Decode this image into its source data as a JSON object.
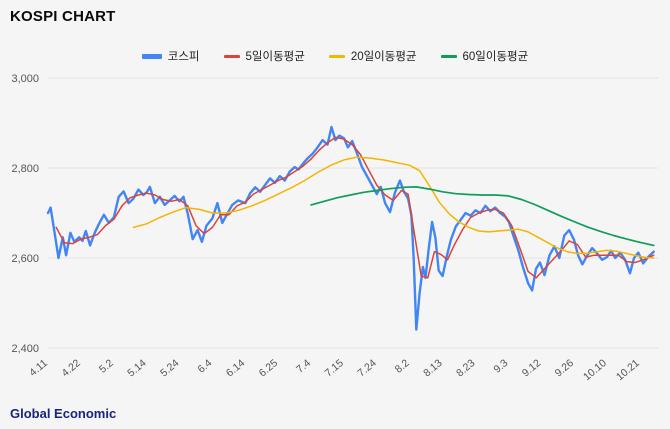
{
  "page": {
    "title": "KOSPI CHART",
    "footer": "Global Economic"
  },
  "legend": {
    "items": [
      {
        "label": "코스피",
        "color": "#4285f4"
      },
      {
        "label": "5일이동평균",
        "color": "#db4437"
      },
      {
        "label": "20일이동평균",
        "color": "#f4b400"
      },
      {
        "label": "60일이동평균",
        "color": "#0f9d58"
      }
    ]
  },
  "chart_data": {
    "type": "line",
    "title": "KOSPI CHART",
    "xlabel": "",
    "ylabel": "",
    "ylim": [
      2400,
      3000
    ],
    "x_domain": [
      0,
      18.55
    ],
    "grid": "horizontal",
    "legend_position": "top",
    "y_ticks": [
      2400,
      2600,
      2800,
      3000
    ],
    "y_tick_labels": [
      "2,400",
      "2,600",
      "2,800",
      "3,000"
    ],
    "x_ticks": [
      "4.11",
      "4.22",
      "5.2",
      "5.14",
      "5.24",
      "6.4",
      "6.14",
      "6.25",
      "7.4",
      "7.15",
      "7.24",
      "8.2",
      "8.13",
      "8.23",
      "9.3",
      "9.12",
      "9.26",
      "10.10",
      "10.21"
    ],
    "x_unit": "tick-index (0 = 4.11 ... 18 = 10.21)",
    "series": [
      {
        "key": "kospi",
        "name": "코스피",
        "color": "#4285f4",
        "width": 2.4,
        "points": [
          [
            0,
            2700
          ],
          [
            0.08,
            2712
          ],
          [
            0.2,
            2656
          ],
          [
            0.32,
            2600
          ],
          [
            0.45,
            2646
          ],
          [
            0.55,
            2606
          ],
          [
            0.68,
            2656
          ],
          [
            0.8,
            2636
          ],
          [
            0.95,
            2646
          ],
          [
            1.05,
            2638
          ],
          [
            1.15,
            2660
          ],
          [
            1.28,
            2628
          ],
          [
            1.42,
            2656
          ],
          [
            1.55,
            2676
          ],
          [
            1.7,
            2696
          ],
          [
            1.85,
            2678
          ],
          [
            2,
            2690
          ],
          [
            2.15,
            2736
          ],
          [
            2.3,
            2748
          ],
          [
            2.45,
            2722
          ],
          [
            2.6,
            2732
          ],
          [
            2.75,
            2752
          ],
          [
            2.9,
            2740
          ],
          [
            3,
            2746
          ],
          [
            3.1,
            2758
          ],
          [
            3.25,
            2722
          ],
          [
            3.4,
            2736
          ],
          [
            3.55,
            2718
          ],
          [
            3.7,
            2728
          ],
          [
            3.85,
            2738
          ],
          [
            4,
            2726
          ],
          [
            4.12,
            2736
          ],
          [
            4.25,
            2698
          ],
          [
            4.4,
            2642
          ],
          [
            4.55,
            2662
          ],
          [
            4.68,
            2636
          ],
          [
            4.82,
            2672
          ],
          [
            5,
            2688
          ],
          [
            5.15,
            2722
          ],
          [
            5.3,
            2678
          ],
          [
            5.45,
            2698
          ],
          [
            5.6,
            2718
          ],
          [
            5.78,
            2728
          ],
          [
            6,
            2722
          ],
          [
            6.15,
            2744
          ],
          [
            6.3,
            2757
          ],
          [
            6.45,
            2747
          ],
          [
            6.6,
            2762
          ],
          [
            6.75,
            2777
          ],
          [
            6.9,
            2767
          ],
          [
            7.05,
            2782
          ],
          [
            7.2,
            2772
          ],
          [
            7.35,
            2792
          ],
          [
            7.5,
            2802
          ],
          [
            7.62,
            2797
          ],
          [
            7.78,
            2812
          ],
          [
            7.9,
            2822
          ],
          [
            8.05,
            2832
          ],
          [
            8.2,
            2846
          ],
          [
            8.35,
            2862
          ],
          [
            8.5,
            2852
          ],
          [
            8.62,
            2891
          ],
          [
            8.74,
            2862
          ],
          [
            8.86,
            2872
          ],
          [
            9,
            2866
          ],
          [
            9.12,
            2846
          ],
          [
            9.25,
            2860
          ],
          [
            9.4,
            2832
          ],
          [
            9.55,
            2802
          ],
          [
            9.7,
            2782
          ],
          [
            9.85,
            2762
          ],
          [
            10,
            2742
          ],
          [
            10.12,
            2758
          ],
          [
            10.25,
            2722
          ],
          [
            10.4,
            2702
          ],
          [
            10.55,
            2745
          ],
          [
            10.7,
            2772
          ],
          [
            10.82,
            2748
          ],
          [
            10.95,
            2732
          ],
          [
            11.05,
            2695
          ],
          [
            11.12,
            2598
          ],
          [
            11.2,
            2441
          ],
          [
            11.3,
            2522
          ],
          [
            11.4,
            2580
          ],
          [
            11.48,
            2556
          ],
          [
            11.58,
            2622
          ],
          [
            11.68,
            2680
          ],
          [
            11.78,
            2645
          ],
          [
            11.88,
            2572
          ],
          [
            12,
            2560
          ],
          [
            12.12,
            2602
          ],
          [
            12.25,
            2640
          ],
          [
            12.4,
            2670
          ],
          [
            12.55,
            2685
          ],
          [
            12.7,
            2700
          ],
          [
            12.85,
            2694
          ],
          [
            13,
            2706
          ],
          [
            13.15,
            2700
          ],
          [
            13.3,
            2716
          ],
          [
            13.45,
            2704
          ],
          [
            13.6,
            2712
          ],
          [
            13.75,
            2700
          ],
          [
            13.9,
            2692
          ],
          [
            14.02,
            2680
          ],
          [
            14.15,
            2650
          ],
          [
            14.3,
            2618
          ],
          [
            14.45,
            2578
          ],
          [
            14.6,
            2544
          ],
          [
            14.72,
            2528
          ],
          [
            14.84,
            2576
          ],
          [
            14.96,
            2590
          ],
          [
            15.1,
            2562
          ],
          [
            15.25,
            2606
          ],
          [
            15.4,
            2626
          ],
          [
            15.55,
            2600
          ],
          [
            15.7,
            2650
          ],
          [
            15.85,
            2662
          ],
          [
            16,
            2640
          ],
          [
            16.12,
            2606
          ],
          [
            16.25,
            2586
          ],
          [
            16.4,
            2606
          ],
          [
            16.55,
            2622
          ],
          [
            16.7,
            2610
          ],
          [
            16.85,
            2596
          ],
          [
            17,
            2602
          ],
          [
            17.12,
            2616
          ],
          [
            17.25,
            2600
          ],
          [
            17.4,
            2612
          ],
          [
            17.55,
            2596
          ],
          [
            17.7,
            2566
          ],
          [
            17.82,
            2600
          ],
          [
            17.95,
            2612
          ],
          [
            18.1,
            2588
          ],
          [
            18.25,
            2602
          ],
          [
            18.42,
            2614
          ]
        ]
      },
      {
        "key": "ma5",
        "name": "5일이동평균",
        "color": "#db4437",
        "width": 1.5,
        "points": [
          [
            0.25,
            2668
          ],
          [
            0.5,
            2634
          ],
          [
            0.75,
            2632
          ],
          [
            1,
            2642
          ],
          [
            1.25,
            2646
          ],
          [
            1.5,
            2652
          ],
          [
            1.75,
            2672
          ],
          [
            2,
            2686
          ],
          [
            2.25,
            2716
          ],
          [
            2.5,
            2734
          ],
          [
            2.75,
            2740
          ],
          [
            3,
            2744
          ],
          [
            3.25,
            2740
          ],
          [
            3.5,
            2730
          ],
          [
            3.75,
            2726
          ],
          [
            4,
            2730
          ],
          [
            4.25,
            2716
          ],
          [
            4.5,
            2672
          ],
          [
            4.75,
            2654
          ],
          [
            5,
            2668
          ],
          [
            5.25,
            2696
          ],
          [
            5.5,
            2696
          ],
          [
            5.75,
            2716
          ],
          [
            6,
            2724
          ],
          [
            6.25,
            2742
          ],
          [
            6.5,
            2752
          ],
          [
            6.75,
            2762
          ],
          [
            7,
            2772
          ],
          [
            7.25,
            2780
          ],
          [
            7.5,
            2792
          ],
          [
            7.75,
            2804
          ],
          [
            8,
            2820
          ],
          [
            8.25,
            2840
          ],
          [
            8.5,
            2856
          ],
          [
            8.75,
            2868
          ],
          [
            9,
            2864
          ],
          [
            9.25,
            2852
          ],
          [
            9.5,
            2830
          ],
          [
            9.75,
            2796
          ],
          [
            10,
            2762
          ],
          [
            10.25,
            2740
          ],
          [
            10.5,
            2728
          ],
          [
            10.75,
            2750
          ],
          [
            10.95,
            2742
          ],
          [
            11.15,
            2650
          ],
          [
            11.35,
            2560
          ],
          [
            11.55,
            2556
          ],
          [
            11.75,
            2614
          ],
          [
            11.95,
            2608
          ],
          [
            12.15,
            2596
          ],
          [
            12.35,
            2628
          ],
          [
            12.6,
            2662
          ],
          [
            12.85,
            2690
          ],
          [
            13.1,
            2700
          ],
          [
            13.35,
            2706
          ],
          [
            13.6,
            2708
          ],
          [
            13.85,
            2700
          ],
          [
            14.1,
            2672
          ],
          [
            14.35,
            2622
          ],
          [
            14.6,
            2570
          ],
          [
            14.85,
            2556
          ],
          [
            15.1,
            2576
          ],
          [
            15.35,
            2596
          ],
          [
            15.6,
            2616
          ],
          [
            15.85,
            2638
          ],
          [
            16.1,
            2630
          ],
          [
            16.35,
            2602
          ],
          [
            16.6,
            2606
          ],
          [
            16.85,
            2606
          ],
          [
            17.1,
            2606
          ],
          [
            17.35,
            2606
          ],
          [
            17.6,
            2592
          ],
          [
            17.85,
            2590
          ],
          [
            18.1,
            2596
          ],
          [
            18.42,
            2606
          ]
        ]
      },
      {
        "key": "ma20",
        "name": "20일이동평균",
        "color": "#f4b400",
        "width": 1.5,
        "points": [
          [
            2.6,
            2668
          ],
          [
            3,
            2676
          ],
          [
            3.4,
            2690
          ],
          [
            3.8,
            2702
          ],
          [
            4.2,
            2712
          ],
          [
            4.6,
            2708
          ],
          [
            5,
            2700
          ],
          [
            5.4,
            2700
          ],
          [
            5.8,
            2706
          ],
          [
            6.2,
            2716
          ],
          [
            6.6,
            2728
          ],
          [
            7,
            2742
          ],
          [
            7.4,
            2756
          ],
          [
            7.8,
            2772
          ],
          [
            8.2,
            2790
          ],
          [
            8.6,
            2806
          ],
          [
            9,
            2818
          ],
          [
            9.4,
            2824
          ],
          [
            9.8,
            2822
          ],
          [
            10.2,
            2818
          ],
          [
            10.6,
            2812
          ],
          [
            11,
            2806
          ],
          [
            11.3,
            2794
          ],
          [
            11.6,
            2760
          ],
          [
            11.9,
            2724
          ],
          [
            12.2,
            2698
          ],
          [
            12.5,
            2680
          ],
          [
            12.8,
            2668
          ],
          [
            13.1,
            2660
          ],
          [
            13.4,
            2658
          ],
          [
            13.7,
            2660
          ],
          [
            14,
            2662
          ],
          [
            14.3,
            2664
          ],
          [
            14.6,
            2658
          ],
          [
            14.9,
            2646
          ],
          [
            15.2,
            2634
          ],
          [
            15.5,
            2622
          ],
          [
            15.8,
            2614
          ],
          [
            16.1,
            2610
          ],
          [
            16.4,
            2611
          ],
          [
            16.7,
            2614
          ],
          [
            17,
            2617
          ],
          [
            17.3,
            2615
          ],
          [
            17.6,
            2610
          ],
          [
            17.9,
            2605
          ],
          [
            18.2,
            2601
          ],
          [
            18.42,
            2600
          ]
        ]
      },
      {
        "key": "ma60",
        "name": "60일이동평균",
        "color": "#0f9d58",
        "width": 1.7,
        "points": [
          [
            8,
            2718
          ],
          [
            8.4,
            2726
          ],
          [
            8.8,
            2734
          ],
          [
            9.2,
            2740
          ],
          [
            9.6,
            2746
          ],
          [
            10,
            2750
          ],
          [
            10.4,
            2754
          ],
          [
            10.8,
            2757
          ],
          [
            11.2,
            2758
          ],
          [
            11.6,
            2753
          ],
          [
            12,
            2747
          ],
          [
            12.4,
            2743
          ],
          [
            12.8,
            2741
          ],
          [
            13.2,
            2740
          ],
          [
            13.6,
            2740
          ],
          [
            14,
            2738
          ],
          [
            14.4,
            2730
          ],
          [
            14.8,
            2719
          ],
          [
            15.2,
            2706
          ],
          [
            15.6,
            2693
          ],
          [
            16,
            2681
          ],
          [
            16.4,
            2669
          ],
          [
            16.8,
            2659
          ],
          [
            17.2,
            2650
          ],
          [
            17.6,
            2642
          ],
          [
            18,
            2635
          ],
          [
            18.42,
            2628
          ]
        ]
      }
    ]
  }
}
